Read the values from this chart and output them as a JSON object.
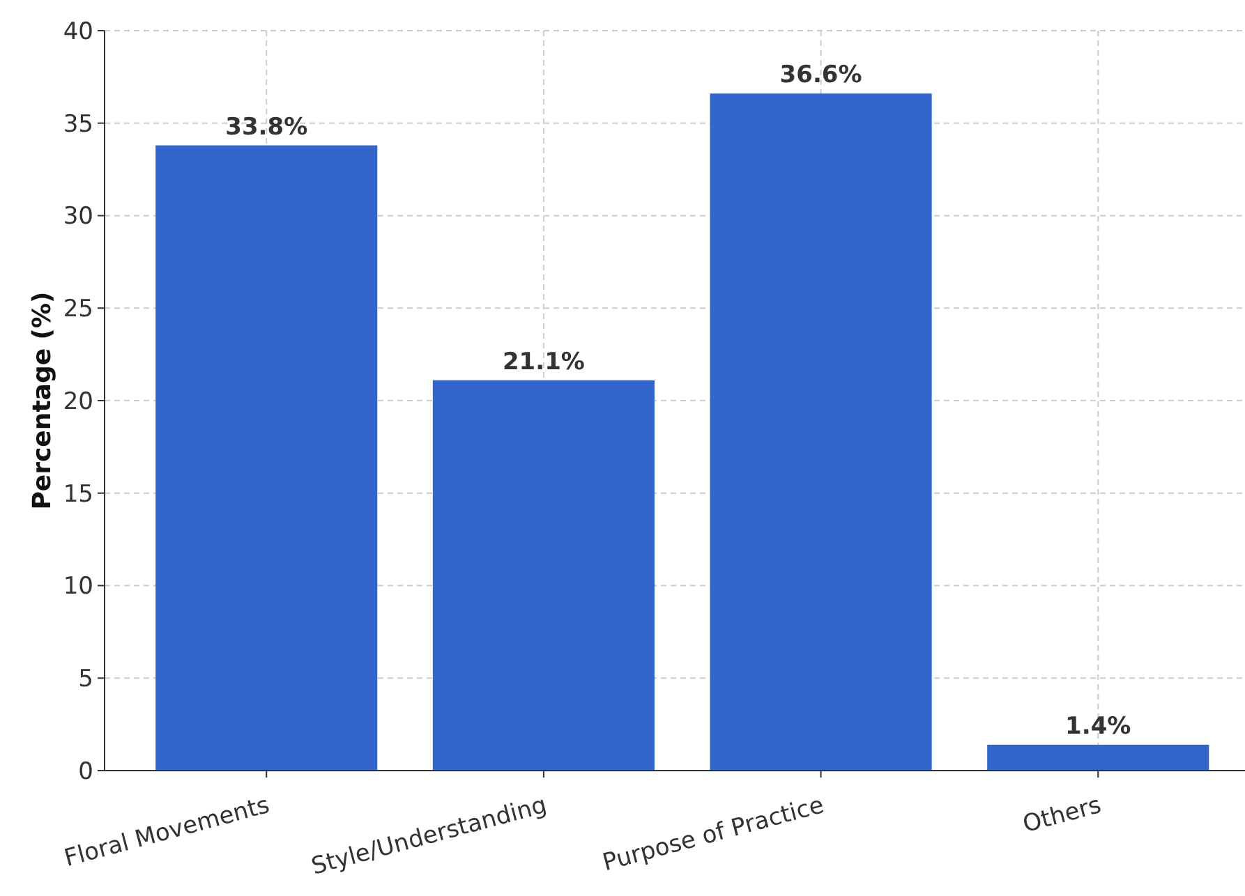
{
  "chart_data": {
    "type": "bar",
    "ylabel": "Percentage (%)",
    "categories": [
      "Floral Movements",
      "Style/Understanding",
      "Purpose of Practice",
      "Others"
    ],
    "values": [
      33.8,
      21.1,
      36.6,
      1.4
    ],
    "value_labels": [
      "33.8%",
      "21.1%",
      "36.6%",
      "1.4%"
    ],
    "color": "#3366cc",
    "ylim": [
      0,
      40
    ],
    "yticks": [
      0,
      5,
      10,
      15,
      20,
      25,
      30,
      35,
      40
    ],
    "grid": true
  }
}
